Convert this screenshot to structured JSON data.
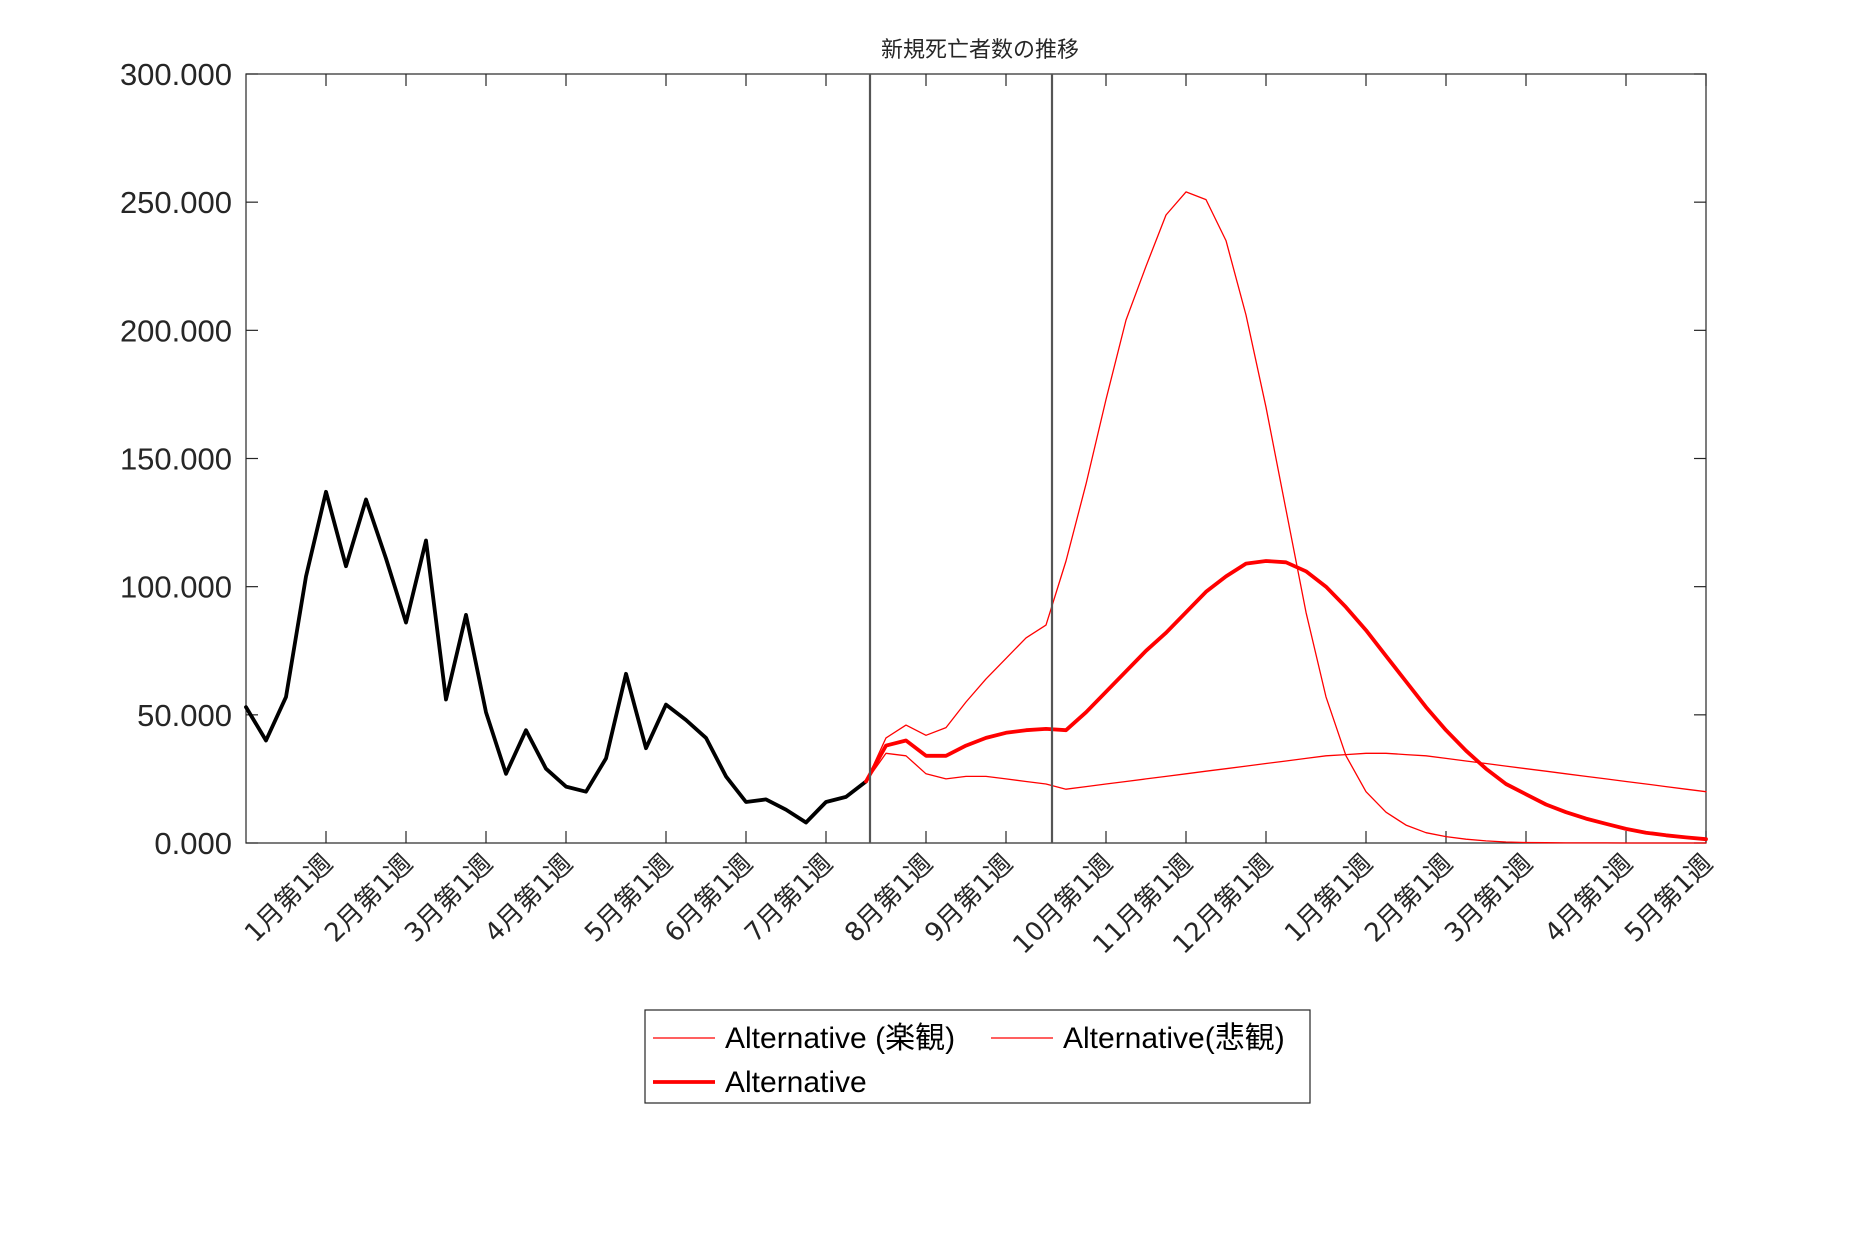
{
  "chart_data": {
    "type": "line",
    "title": "新規死亡者数の推移",
    "xlabel": "",
    "ylabel": "",
    "ylim": [
      0,
      300000
    ],
    "yticks": [
      0,
      50000,
      100000,
      150000,
      200000,
      250000,
      300000
    ],
    "ytick_labels": [
      "0.000",
      "50.000",
      "100.000",
      "150.000",
      "200.000",
      "250.000",
      "300.000"
    ],
    "x_range_weeks": [
      1,
      74
    ],
    "xticks": [
      {
        "label": "1月第1週",
        "week": 5
      },
      {
        "label": "2月第1週",
        "week": 9
      },
      {
        "label": "3月第1週",
        "week": 13
      },
      {
        "label": "4月第1週",
        "week": 17
      },
      {
        "label": "5月第1週",
        "week": 22
      },
      {
        "label": "6月第1週",
        "week": 26
      },
      {
        "label": "7月第1週",
        "week": 30
      },
      {
        "label": "8月第1週",
        "week": 35
      },
      {
        "label": "9月第1週",
        "week": 39
      },
      {
        "label": "10月第1週",
        "week": 44
      },
      {
        "label": "11月第1週",
        "week": 48
      },
      {
        "label": "12月第1週",
        "week": 52
      },
      {
        "label": "1月第1週",
        "week": 57
      },
      {
        "label": "2月第1週",
        "week": 61
      },
      {
        "label": "3月第1週",
        "week": 65
      },
      {
        "label": "4月第1週",
        "week": 70
      },
      {
        "label": "5月第1週",
        "week": 74
      }
    ],
    "vlines_week": [
      32.2,
      41.3
    ],
    "grid": false,
    "legend_position": "bottom-center",
    "series": [
      {
        "name": "",
        "color": "#000000",
        "style": "thick",
        "in_legend": false,
        "x": [
          1,
          2,
          3,
          4,
          5,
          6,
          7,
          8,
          9,
          10,
          11,
          12,
          13,
          14,
          15,
          16,
          17,
          18,
          19,
          20,
          21,
          22,
          23,
          24,
          25,
          26,
          27,
          28,
          29,
          30,
          31,
          32
        ],
        "y": [
          53000,
          40000,
          57000,
          104000,
          137000,
          108000,
          134000,
          111000,
          86000,
          118000,
          56000,
          89000,
          51000,
          27000,
          44000,
          29000,
          22000,
          20000,
          33000,
          66000,
          37000,
          54000,
          48000,
          41000,
          26000,
          16000,
          17000,
          13000,
          8000,
          16000,
          18000,
          24000
        ]
      },
      {
        "name": "Alternative (楽観)",
        "color": "#ff0000",
        "style": "thin",
        "in_legend": true,
        "x": [
          32,
          33,
          34,
          35,
          36,
          37,
          38,
          39,
          40,
          41,
          42,
          43,
          44,
          45,
          46,
          47,
          48,
          49,
          50,
          51,
          52,
          53,
          54,
          55,
          56,
          57,
          58,
          59,
          60,
          61,
          62,
          63,
          64,
          65,
          66,
          67,
          68,
          69,
          70,
          71,
          72,
          73,
          74
        ],
        "y": [
          24000,
          35000,
          34000,
          27000,
          25000,
          26000,
          26000,
          25000,
          24000,
          23000,
          21000,
          22000,
          23000,
          24000,
          25000,
          26000,
          27000,
          28000,
          29000,
          30000,
          31000,
          32000,
          33000,
          34000,
          34500,
          35000,
          35000,
          34500,
          34000,
          33000,
          32000,
          31000,
          30000,
          29000,
          28000,
          27000,
          26000,
          25000,
          24000,
          23000,
          22000,
          21000,
          20000
        ]
      },
      {
        "name": "Alternative(悲観)",
        "color": "#ff0000",
        "style": "thin",
        "in_legend": true,
        "x": [
          32,
          33,
          34,
          35,
          36,
          37,
          38,
          39,
          40,
          41,
          42,
          43,
          44,
          45,
          46,
          47,
          48,
          49,
          50,
          51,
          52,
          53,
          54,
          55,
          56,
          57,
          58,
          59,
          60,
          61,
          62,
          63,
          64,
          65,
          66,
          67,
          68,
          69,
          70,
          71,
          72,
          73,
          74
        ],
        "y": [
          24000,
          41000,
          46000,
          42000,
          45000,
          55000,
          64000,
          72000,
          80000,
          85000,
          110000,
          140000,
          173000,
          204000,
          225000,
          245000,
          254000,
          251000,
          235000,
          206000,
          170000,
          130000,
          90000,
          57000,
          34000,
          20000,
          12000,
          7000,
          4000,
          2500,
          1500,
          800,
          400,
          200,
          100,
          50,
          30,
          20,
          10,
          5,
          3,
          2,
          1
        ]
      },
      {
        "name": "Alternative",
        "color": "#ff0000",
        "style": "thick",
        "in_legend": true,
        "x": [
          32,
          33,
          34,
          35,
          36,
          37,
          38,
          39,
          40,
          41,
          42,
          43,
          44,
          45,
          46,
          47,
          48,
          49,
          50,
          51,
          52,
          53,
          54,
          55,
          56,
          57,
          58,
          59,
          60,
          61,
          62,
          63,
          64,
          65,
          66,
          67,
          68,
          69,
          70,
          71,
          72,
          73,
          74
        ],
        "y": [
          24000,
          38000,
          40000,
          34000,
          34000,
          38000,
          41000,
          43000,
          44000,
          44500,
          44000,
          51000,
          59000,
          67000,
          75000,
          82000,
          90000,
          98000,
          104000,
          109000,
          110000,
          109500,
          106000,
          100000,
          92000,
          83000,
          73000,
          63000,
          53000,
          44000,
          36000,
          29000,
          23000,
          19000,
          15000,
          12000,
          9500,
          7500,
          5500,
          4000,
          3000,
          2200,
          1500
        ]
      }
    ]
  }
}
